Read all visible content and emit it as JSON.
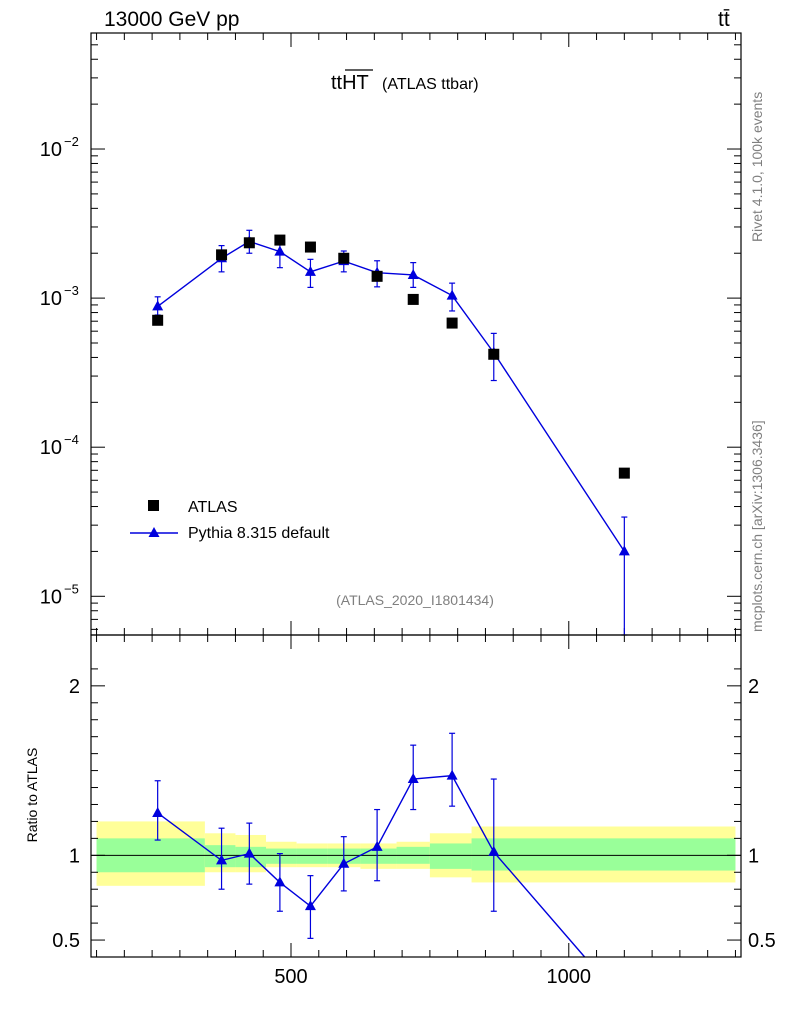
{
  "header": {
    "energy_label": "13000 GeV pp",
    "process_label": "tt̄"
  },
  "plot": {
    "title_main": "ttHT",
    "title_sub": "(ATLAS ttbar)",
    "analysis_id": "(ATLAS_2020_I1801434)",
    "ratio_ylabel": "Ratio to ATLAS",
    "side_rivet": "Rivet 4.1.0,  100k events",
    "side_site": "mcplots.cern.ch [arXiv:1306.3436]"
  },
  "legend": {
    "data_label": "ATLAS",
    "mc_label": "Pythia 8.315 default"
  },
  "colors": {
    "mc": "#0000dd",
    "band_inner": "#99ff99",
    "band_outer": "#ffff99",
    "data": "#000000"
  },
  "chart_data": {
    "type": "scatter",
    "xlim": [
      140,
      1310
    ],
    "top_ylim": [
      5.5e-06,
      0.06
    ],
    "top_yscale": "log",
    "ratio_ylim": [
      0.4,
      2.3
    ],
    "x_ticks": [
      500,
      1000
    ],
    "x_tick_labels": [
      "500",
      "1000"
    ],
    "top_y_ticks": [
      1e-05,
      0.0001,
      0.001,
      0.01
    ],
    "top_y_tick_labels": [
      [
        "10",
        "−5"
      ],
      [
        "10",
        "−4"
      ],
      [
        "10",
        "−3"
      ],
      [
        "10",
        "−2"
      ]
    ],
    "ratio_y_ticks": [
      0.5,
      1,
      2
    ],
    "ratio_y_tick_labels": [
      "0.5",
      "1",
      "2"
    ],
    "series": [
      {
        "name": "ATLAS",
        "x": [
          260,
          375,
          425,
          480,
          535,
          595,
          655,
          720,
          790,
          865,
          1100
        ],
        "y": [
          0.00071,
          0.00195,
          0.00235,
          0.00245,
          0.0022,
          0.00185,
          0.0014,
          0.00098,
          0.00068,
          0.00042,
          6.7e-05
        ]
      },
      {
        "name": "Pythia 8.315 default",
        "x": [
          260,
          375,
          425,
          480,
          535,
          595,
          655,
          720,
          790,
          865,
          1100
        ],
        "y": [
          0.00088,
          0.00185,
          0.0024,
          0.00205,
          0.0015,
          0.00177,
          0.00148,
          0.00143,
          0.00104,
          0.00043,
          2e-05
        ],
        "yerr_low": [
          0.00011,
          0.00035,
          0.0004,
          0.00045,
          0.00032,
          0.00027,
          0.00029,
          0.00025,
          0.00022,
          0.00015,
          1.95e-05
        ],
        "yerr_high": [
          0.00014,
          0.0004,
          0.00045,
          0.00045,
          0.00032,
          0.0003,
          0.0003,
          0.0003,
          0.00022,
          0.00015,
          1.4e-05
        ]
      }
    ],
    "ratio": {
      "x": [
        260,
        375,
        425,
        480,
        535,
        595,
        655,
        720,
        790,
        865
      ],
      "y": [
        1.25,
        0.97,
        1.01,
        0.84,
        0.7,
        0.95,
        1.05,
        1.45,
        1.47,
        1.02
      ],
      "yerr_low": [
        0.16,
        0.17,
        0.18,
        0.17,
        0.19,
        0.16,
        0.2,
        0.18,
        0.18,
        0.35
      ],
      "yerr_high": [
        0.19,
        0.19,
        0.18,
        0.17,
        0.18,
        0.16,
        0.22,
        0.2,
        0.25,
        0.43
      ],
      "line_end": [
        1055,
        0.3
      ],
      "bands": [
        {
          "x0": 150,
          "x1": 345,
          "inner": [
            0.9,
            1.1
          ],
          "outer": [
            0.82,
            1.2
          ]
        },
        {
          "x0": 345,
          "x1": 400,
          "inner": [
            0.93,
            1.06
          ],
          "outer": [
            0.9,
            1.13
          ]
        },
        {
          "x0": 400,
          "x1": 455,
          "inner": [
            0.93,
            1.05
          ],
          "outer": [
            0.9,
            1.12
          ]
        },
        {
          "x0": 455,
          "x1": 510,
          "inner": [
            0.95,
            1.04
          ],
          "outer": [
            0.93,
            1.08
          ]
        },
        {
          "x0": 510,
          "x1": 565,
          "inner": [
            0.95,
            1.04
          ],
          "outer": [
            0.93,
            1.07
          ]
        },
        {
          "x0": 565,
          "x1": 625,
          "inner": [
            0.95,
            1.04
          ],
          "outer": [
            0.93,
            1.07
          ]
        },
        {
          "x0": 625,
          "x1": 690,
          "inner": [
            0.95,
            1.04
          ],
          "outer": [
            0.92,
            1.07
          ]
        },
        {
          "x0": 690,
          "x1": 750,
          "inner": [
            0.95,
            1.05
          ],
          "outer": [
            0.92,
            1.08
          ]
        },
        {
          "x0": 750,
          "x1": 825,
          "inner": [
            0.92,
            1.07
          ],
          "outer": [
            0.87,
            1.13
          ]
        },
        {
          "x0": 825,
          "x1": 1300,
          "inner": [
            0.91,
            1.1
          ],
          "outer": [
            0.84,
            1.17
          ]
        }
      ]
    }
  }
}
